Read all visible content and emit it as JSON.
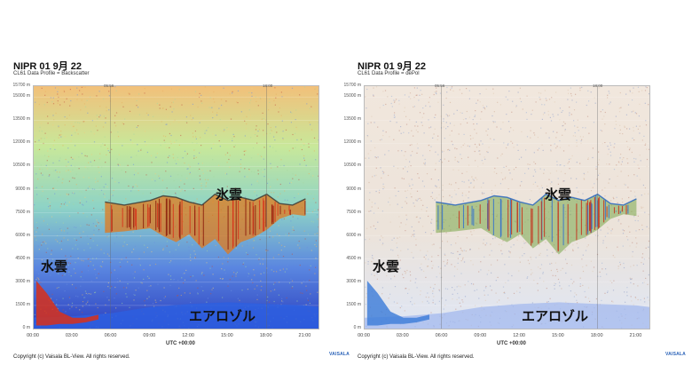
{
  "panels": [
    {
      "title": "NIPR 01 9月 22",
      "subtitle": "CL61 Data Profile = Backscatter",
      "marker_left": "05:56",
      "marker_right": "18:00",
      "annotations": {
        "upper": "氷雲",
        "lower_left": "水雲",
        "bottom": "エアロゾル"
      },
      "copyright": "Copyright (c) Vaisala BL-View. All rights reserved.",
      "brand": "VAISALA",
      "colors": {
        "low": "#3a49c8",
        "mid": "#9fd7b6",
        "high": "#d8301a"
      }
    },
    {
      "title": "NIPR 01 9月 22",
      "subtitle": "CL61 Data Profile = dePol",
      "marker_left": "05:56",
      "marker_right": "18:00",
      "annotations": {
        "upper": "氷雲",
        "lower_left": "水雲",
        "bottom": "エアロゾル"
      },
      "copyright": "Copyright (c) Vaisala BL-View. All rights reserved.",
      "brand": "VAISALA",
      "colors": {
        "low": "#2f6fd0",
        "mid": "#e8d9c8",
        "high": "#c72a18"
      }
    }
  ],
  "chart_data": [
    {
      "type": "heatmap",
      "title": "NIPR 01 9月 22",
      "subtitle": "CL61 Data Profile = Backscatter",
      "xlabel": "UTC +00:00",
      "x_ticks": [
        "00:00",
        "03:00",
        "06:00",
        "09:00",
        "12:00",
        "15:00",
        "18:00",
        "21:00"
      ],
      "y_ticks": [
        "0 m",
        "1500 m",
        "3000 m",
        "4500 m",
        "6000 m",
        "7500 m",
        "9000 m",
        "10500 m",
        "12000 m",
        "13500 m",
        "15000 m",
        "15700 m"
      ],
      "xlim": [
        0,
        22
      ],
      "ylim": [
        0,
        15700
      ],
      "features": [
        {
          "label": "氷雲",
          "x": [
            5.5,
            7,
            9,
            10,
            11,
            12,
            13,
            14,
            15,
            16,
            17,
            18,
            19,
            20,
            21
          ],
          "base_m": [
            6200,
            6300,
            6500,
            6000,
            5600,
            6100,
            5200,
            5800,
            4800,
            5600,
            5900,
            6400,
            7100,
            7400,
            7300
          ],
          "top_m": [
            8200,
            8000,
            8300,
            8600,
            8500,
            8200,
            8000,
            8700,
            8300,
            8500,
            8300,
            8700,
            8100,
            8000,
            8400
          ]
        },
        {
          "label": "水雲",
          "x": [
            0.2,
            1,
            2,
            3,
            4,
            5
          ],
          "base_m": [
            200,
            200,
            300,
            300,
            400,
            600
          ],
          "top_m": [
            3100,
            2300,
            1100,
            700,
            700,
            900
          ]
        },
        {
          "label": "エアロゾル",
          "x": [
            0,
            3,
            6,
            9,
            12,
            15,
            18,
            21,
            22
          ],
          "top_m": [
            700,
            800,
            1000,
            1400,
            1600,
            1700,
            1600,
            1500,
            1400
          ]
        }
      ]
    },
    {
      "type": "heatmap",
      "title": "NIPR 01 9月 22",
      "subtitle": "CL61 Data Profile = dePol",
      "xlabel": "UTC +00:00",
      "x_ticks": [
        "00:00",
        "03:00",
        "06:00",
        "09:00",
        "12:00",
        "15:00",
        "18:00",
        "21:00"
      ],
      "y_ticks": [
        "0 m",
        "1500 m",
        "3000 m",
        "4500 m",
        "6000 m",
        "7500 m",
        "9000 m",
        "10500 m",
        "12000 m",
        "13500 m",
        "15000 m",
        "15700 m"
      ],
      "xlim": [
        0,
        22
      ],
      "ylim": [
        0,
        15700
      ],
      "features": [
        {
          "label": "氷雲",
          "x": [
            5.5,
            7,
            9,
            10,
            11,
            12,
            13,
            14,
            15,
            16,
            17,
            18,
            19,
            20,
            21
          ],
          "base_m": [
            6200,
            6300,
            6500,
            6000,
            5600,
            6100,
            5200,
            5800,
            4800,
            5600,
            5900,
            6400,
            7100,
            7400,
            7300
          ],
          "top_m": [
            8200,
            8000,
            8300,
            8600,
            8500,
            8200,
            8000,
            8700,
            8300,
            8500,
            8300,
            8700,
            8100,
            8000,
            8400
          ]
        },
        {
          "label": "水雲",
          "x": [
            0.2,
            1,
            2,
            3,
            4,
            5
          ],
          "base_m": [
            200,
            200,
            300,
            300,
            400,
            600
          ],
          "top_m": [
            3100,
            2300,
            1100,
            700,
            700,
            900
          ]
        },
        {
          "label": "エアロゾル",
          "x": [
            0,
            3,
            6,
            9,
            12,
            15,
            18,
            21,
            22
          ],
          "top_m": [
            700,
            800,
            1000,
            1400,
            1600,
            1700,
            1600,
            1500,
            1400
          ]
        }
      ]
    }
  ]
}
